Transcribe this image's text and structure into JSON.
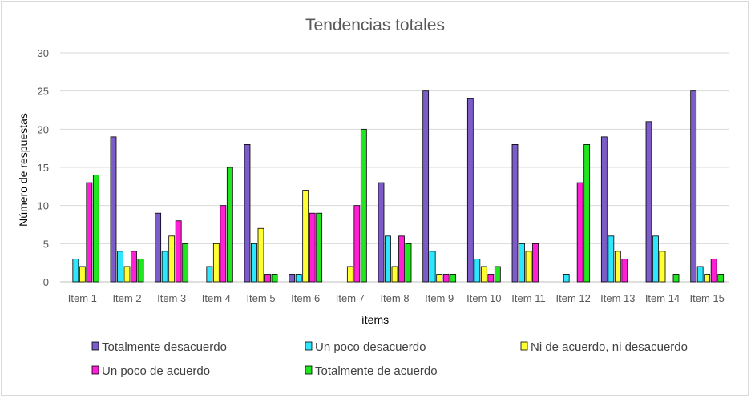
{
  "chart_data": {
    "type": "bar",
    "title": "Tendencias totales",
    "xlabel": "ítems",
    "ylabel": "Número de respuestas",
    "ylim": [
      0,
      30
    ],
    "yticks": [
      0,
      5,
      10,
      15,
      20,
      25,
      30
    ],
    "grid": true,
    "legend_position": "bottom",
    "categories": [
      "Item 1",
      "Item 2",
      "Item 3",
      "Item 4",
      "Item 5",
      "Item 6",
      "Item 7",
      "Item 8",
      "Item 9",
      "Item 10",
      "Item 11",
      "Item 12",
      "Item 13",
      "Item 14",
      "Item 15"
    ],
    "series": [
      {
        "name": "Totalmente desacuerdo",
        "color": "#7030a0",
        "fill": "#7b5cc9",
        "values": [
          0,
          19,
          9,
          0,
          18,
          1,
          0,
          13,
          25,
          24,
          18,
          0,
          19,
          21,
          25
        ]
      },
      {
        "name": "Un poco desacuerdo",
        "color": "#00e5ff",
        "fill": "#2fe6ff",
        "values": [
          3,
          4,
          4,
          2,
          5,
          1,
          0,
          6,
          4,
          3,
          5,
          1,
          6,
          6,
          2
        ]
      },
      {
        "name": "Ni de acuerdo, ni desacuerdo",
        "color": "#ffff00",
        "fill": "#ffff33",
        "values": [
          2,
          2,
          6,
          5,
          7,
          12,
          2,
          2,
          1,
          2,
          4,
          0,
          4,
          4,
          1
        ]
      },
      {
        "name": "Un poco de acuerdo",
        "color": "#ff00ff",
        "fill": "#ff1fd4",
        "values": [
          13,
          4,
          8,
          10,
          1,
          9,
          10,
          6,
          1,
          1,
          5,
          13,
          3,
          0,
          3
        ]
      },
      {
        "name": "Totalmente de acuerdo",
        "color": "#00ff00",
        "fill": "#1fe61f",
        "values": [
          14,
          3,
          5,
          15,
          1,
          9,
          20,
          5,
          1,
          2,
          0,
          18,
          0,
          1,
          1
        ]
      }
    ]
  }
}
